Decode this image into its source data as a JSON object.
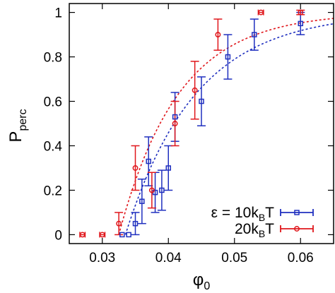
{
  "chart_data": {
    "type": "scatter",
    "xlabel": "φ",
    "xlabel_sub": "0",
    "ylabel": "P",
    "ylabel_sub": "perc",
    "xlim": [
      0.025,
      0.065
    ],
    "ylim": [
      -0.04,
      1.04
    ],
    "xticks": [
      0.03,
      0.04,
      0.05,
      0.06
    ],
    "xtick_labels": [
      "0.03",
      "0.04",
      "0.05",
      "0.06"
    ],
    "yticks": [
      0,
      0.2,
      0.4,
      0.6,
      0.8,
      1
    ],
    "ytick_labels": [
      "0",
      "0.2",
      "0.4",
      "0.6",
      "0.8",
      "1"
    ],
    "grid": false,
    "legend_position": "bottom-right",
    "series": [
      {
        "name_main": "ε = 10k",
        "name_sub": "B",
        "name_tail": "T",
        "color": "#1f2fbf",
        "marker": "square",
        "points": [
          {
            "x": 0.033,
            "y": 0.0,
            "xerr": 0.0,
            "yerr": 0.0
          },
          {
            "x": 0.034,
            "y": 0.0,
            "xerr": 0.0,
            "yerr": 0.0
          },
          {
            "x": 0.035,
            "y": 0.05,
            "xerr": 0.0,
            "yerr": 0.05
          },
          {
            "x": 0.036,
            "y": 0.15,
            "xerr": 0.0,
            "yerr": 0.1
          },
          {
            "x": 0.037,
            "y": 0.33,
            "xerr": 0.0,
            "yerr": 0.11
          },
          {
            "x": 0.038,
            "y": 0.19,
            "xerr": 0.0,
            "yerr": 0.09
          },
          {
            "x": 0.039,
            "y": 0.2,
            "xerr": 0.0,
            "yerr": 0.09
          },
          {
            "x": 0.04,
            "y": 0.3,
            "xerr": 0.0,
            "yerr": 0.1
          },
          {
            "x": 0.041,
            "y": 0.53,
            "xerr": 0.0,
            "yerr": 0.11
          },
          {
            "x": 0.045,
            "y": 0.6,
            "xerr": 0.0,
            "yerr": 0.11
          },
          {
            "x": 0.049,
            "y": 0.8,
            "xerr": 0.0,
            "yerr": 0.1
          },
          {
            "x": 0.053,
            "y": 0.9,
            "xerr": 0.0,
            "yerr": 0.07
          },
          {
            "x": 0.06,
            "y": 0.95,
            "xerr": 0.0,
            "yerr": 0.05
          }
        ],
        "fit": {
          "x0": 0.0335,
          "k": 0.0106,
          "x_end": 0.065
        }
      },
      {
        "name_main": "20k",
        "name_sub": "B",
        "name_tail": "T",
        "color": "#e0161b",
        "marker": "circle",
        "points": [
          {
            "x": 0.027,
            "y": 0.0,
            "xerr": 0.0004,
            "yerr": 0.0
          },
          {
            "x": 0.03,
            "y": 0.0,
            "xerr": 0.0004,
            "yerr": 0.0
          },
          {
            "x": 0.0325,
            "y": 0.05,
            "xerr": 0.0,
            "yerr": 0.05
          },
          {
            "x": 0.035,
            "y": 0.3,
            "xerr": 0.0,
            "yerr": 0.1
          },
          {
            "x": 0.0375,
            "y": 0.2,
            "xerr": 0.0,
            "yerr": 0.08
          },
          {
            "x": 0.041,
            "y": 0.5,
            "xerr": 0.0,
            "yerr": 0.1
          },
          {
            "x": 0.044,
            "y": 0.65,
            "xerr": 0.0,
            "yerr": 0.13
          },
          {
            "x": 0.0475,
            "y": 0.9,
            "xerr": 0.0,
            "yerr": 0.07
          },
          {
            "x": 0.054,
            "y": 1.0,
            "xerr": 0.0004,
            "yerr": 0.0
          },
          {
            "x": 0.06,
            "y": 1.0,
            "xerr": 0.0,
            "yerr": 0.01
          }
        ],
        "fit": {
          "x0": 0.0325,
          "k": 0.009,
          "x_end": 0.065
        }
      }
    ]
  }
}
